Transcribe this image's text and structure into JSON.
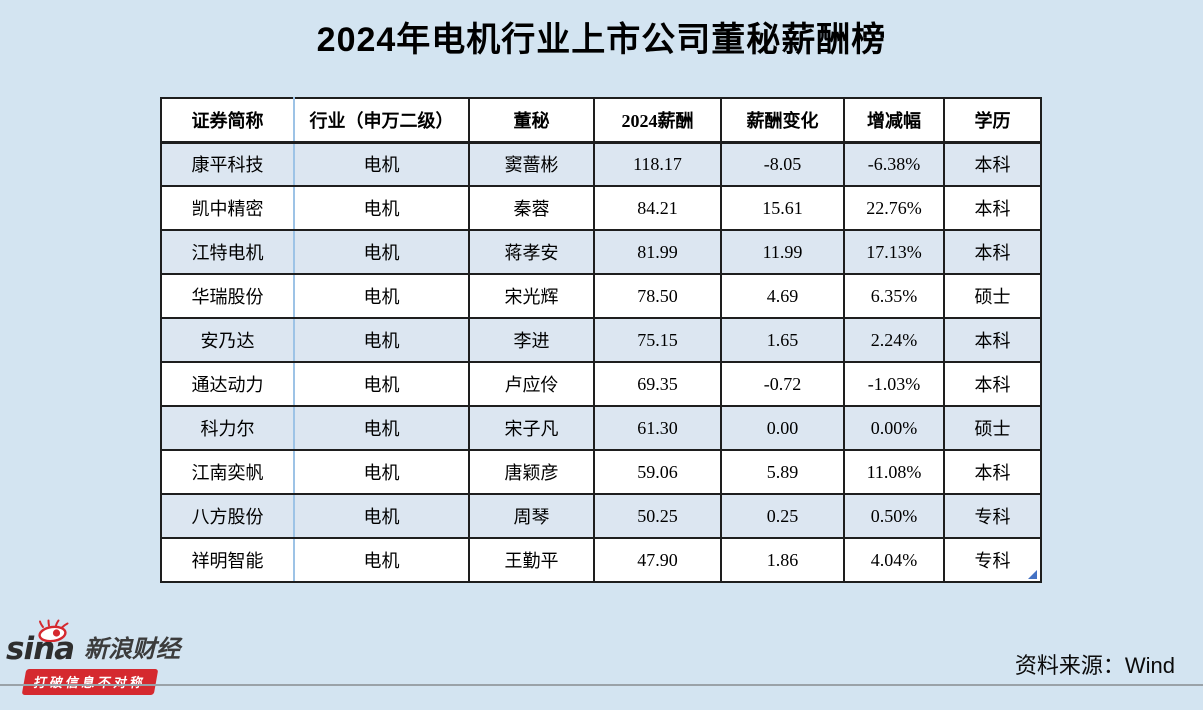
{
  "chart_data": {
    "type": "table",
    "title": "2024年电机行业上市公司董秘薪酬榜",
    "columns": [
      "证券简称",
      "行业（申万二级）",
      "董秘",
      "2024薪酬",
      "薪酬变化",
      "增减幅",
      "学历"
    ],
    "rows": [
      [
        "康平科技",
        "电机",
        "窦蔷彬",
        "118.17",
        "-8.05",
        "-6.38%",
        "本科"
      ],
      [
        "凯中精密",
        "电机",
        "秦蓉",
        "84.21",
        "15.61",
        "22.76%",
        "本科"
      ],
      [
        "江特电机",
        "电机",
        "蒋孝安",
        "81.99",
        "11.99",
        "17.13%",
        "本科"
      ],
      [
        "华瑞股份",
        "电机",
        "宋光辉",
        "78.50",
        "4.69",
        "6.35%",
        "硕士"
      ],
      [
        "安乃达",
        "电机",
        "李进",
        "75.15",
        "1.65",
        "2.24%",
        "本科"
      ],
      [
        "通达动力",
        "电机",
        "卢应伶",
        "69.35",
        "-0.72",
        "-1.03%",
        "本科"
      ],
      [
        "科力尔",
        "电机",
        "宋子凡",
        "61.30",
        "0.00",
        "0.00%",
        "硕士"
      ],
      [
        "江南奕帆",
        "电机",
        "唐颖彦",
        "59.06",
        "5.89",
        "11.08%",
        "本科"
      ],
      [
        "八方股份",
        "电机",
        "周琴",
        "50.25",
        "0.25",
        "0.50%",
        "专科"
      ],
      [
        "祥明智能",
        "电机",
        "王勤平",
        "47.90",
        "1.86",
        "4.04%",
        "专科"
      ]
    ],
    "row_striping": "odd rows light blue #dce6f1, even rows white, white header"
  },
  "footer": {
    "logo_en": "sina",
    "logo_cn": "新浪财经",
    "slogan": "打破信息不对称",
    "source": "资料来源：Wind"
  },
  "colors": {
    "page_background": "#d3e4f1",
    "row_alt": "#dce6f1",
    "table_border": "#1e1e1e",
    "first_column_divider": "#9dc3e6",
    "sina_red": "#d5292f",
    "corner_triangle": "#4472c4",
    "divider_line": "#9aa2a8"
  }
}
